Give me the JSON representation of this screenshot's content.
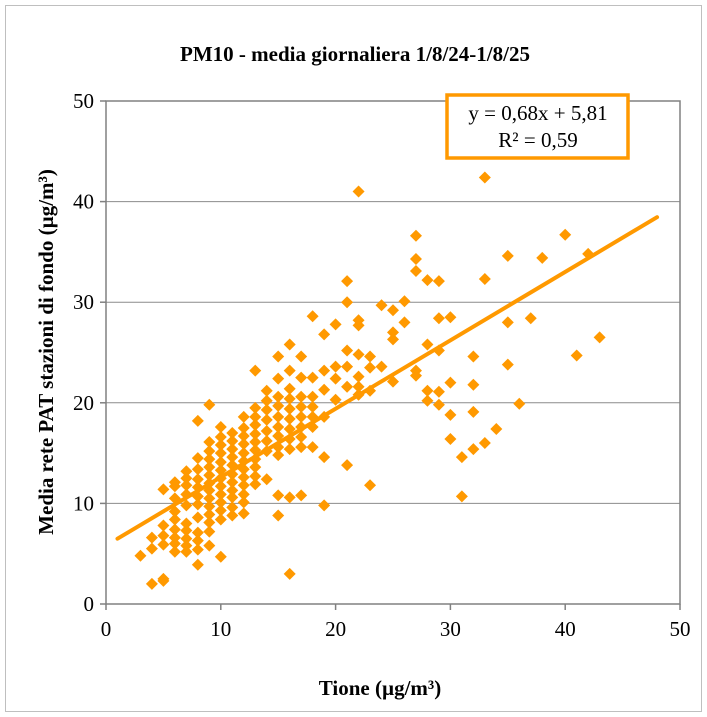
{
  "chart_data": {
    "type": "scatter",
    "title": "PM10 - media giornaliera 1/8/24-1/8/25",
    "xlabel": "Tione (µg/m³)",
    "ylabel": "Media rete PAT stazioni di fondo (µg/m³)",
    "xlim": [
      0,
      50
    ],
    "ylim": [
      0,
      50
    ],
    "x_ticks": [
      "0",
      "10",
      "20",
      "30",
      "40",
      "50"
    ],
    "y_ticks": [
      "0",
      "10",
      "20",
      "30",
      "40",
      "50"
    ],
    "grid": true,
    "marker_color": "#ff9900",
    "marker_shape": "diamond",
    "trendline": {
      "equation": "y = 0,68x + 5,81",
      "r_squared": "R² = 0,59",
      "slope": 0.68,
      "intercept": 5.81,
      "x_range": [
        1,
        48
      ],
      "color": "#ff9900"
    },
    "points": [
      [
        3,
        4.8
      ],
      [
        4,
        2.0
      ],
      [
        4,
        5.5
      ],
      [
        4,
        6.6
      ],
      [
        5,
        2.5
      ],
      [
        5,
        2.3
      ],
      [
        5,
        5.9
      ],
      [
        5,
        6.8
      ],
      [
        5,
        7.8
      ],
      [
        5,
        11.4
      ],
      [
        6,
        5.2
      ],
      [
        6,
        6.0
      ],
      [
        6,
        6.6
      ],
      [
        6,
        7.4
      ],
      [
        6,
        8.4
      ],
      [
        6,
        9.2
      ],
      [
        6,
        10.5
      ],
      [
        6,
        11.7
      ],
      [
        6,
        12.1
      ],
      [
        7,
        5.2
      ],
      [
        7,
        5.8
      ],
      [
        7,
        6.5
      ],
      [
        7,
        7.3
      ],
      [
        7,
        8.0
      ],
      [
        7,
        9.8
      ],
      [
        7,
        10.9
      ],
      [
        7,
        11.8
      ],
      [
        7,
        12.5
      ],
      [
        7,
        13.2
      ],
      [
        8,
        3.9
      ],
      [
        8,
        5.4
      ],
      [
        8,
        6.3
      ],
      [
        8,
        7.1
      ],
      [
        8,
        8.6
      ],
      [
        8,
        9.9
      ],
      [
        8,
        10.7
      ],
      [
        8,
        11.6
      ],
      [
        8,
        12.4
      ],
      [
        8,
        13.4
      ],
      [
        8,
        14.5
      ],
      [
        8,
        18.2
      ],
      [
        9,
        5.8
      ],
      [
        9,
        7.2
      ],
      [
        9,
        8.1
      ],
      [
        9,
        8.9
      ],
      [
        9,
        9.7
      ],
      [
        9,
        10.5
      ],
      [
        9,
        11.3
      ],
      [
        9,
        12.0
      ],
      [
        9,
        12.8
      ],
      [
        9,
        13.6
      ],
      [
        9,
        14.4
      ],
      [
        9,
        15.2
      ],
      [
        9,
        16.1
      ],
      [
        9,
        19.8
      ],
      [
        10,
        4.7
      ],
      [
        10,
        8.4
      ],
      [
        10,
        9.3
      ],
      [
        10,
        10.1
      ],
      [
        10,
        10.9
      ],
      [
        10,
        11.7
      ],
      [
        10,
        12.5
      ],
      [
        10,
        13.3
      ],
      [
        10,
        14.1
      ],
      [
        10,
        15.0
      ],
      [
        10,
        15.8
      ],
      [
        10,
        16.6
      ],
      [
        10,
        17.6
      ],
      [
        11,
        8.8
      ],
      [
        11,
        9.6
      ],
      [
        11,
        10.6
      ],
      [
        11,
        11.3
      ],
      [
        11,
        12.1
      ],
      [
        11,
        12.9
      ],
      [
        11,
        13.8
      ],
      [
        11,
        14.6
      ],
      [
        11,
        15.4
      ],
      [
        11,
        16.2
      ],
      [
        11,
        17.0
      ],
      [
        12,
        9.0
      ],
      [
        12,
        10.1
      ],
      [
        12,
        10.9
      ],
      [
        12,
        11.8
      ],
      [
        12,
        12.6
      ],
      [
        12,
        13.4
      ],
      [
        12,
        14.2
      ],
      [
        12,
        15.0
      ],
      [
        12,
        15.9
      ],
      [
        12,
        16.7
      ],
      [
        12,
        17.5
      ],
      [
        12,
        18.6
      ],
      [
        13,
        11.9
      ],
      [
        13,
        12.7
      ],
      [
        13,
        13.6
      ],
      [
        13,
        14.4
      ],
      [
        13,
        15.3
      ],
      [
        13,
        16.1
      ],
      [
        13,
        16.9
      ],
      [
        13,
        17.8
      ],
      [
        13,
        18.6
      ],
      [
        13,
        19.5
      ],
      [
        13,
        23.2
      ],
      [
        14,
        12.4
      ],
      [
        14,
        15.2
      ],
      [
        14,
        16.2
      ],
      [
        14,
        17.2
      ],
      [
        14,
        18.3
      ],
      [
        14,
        19.3
      ],
      [
        14,
        20.2
      ],
      [
        14,
        21.2
      ],
      [
        15,
        8.8
      ],
      [
        15,
        10.8
      ],
      [
        15,
        14.8
      ],
      [
        15,
        15.6
      ],
      [
        15,
        16.7
      ],
      [
        15,
        17.6
      ],
      [
        15,
        18.6
      ],
      [
        15,
        19.7
      ],
      [
        15,
        20.6
      ],
      [
        15,
        22.4
      ],
      [
        15,
        24.6
      ],
      [
        16,
        3.0
      ],
      [
        16,
        10.6
      ],
      [
        16,
        15.4
      ],
      [
        16,
        16.4
      ],
      [
        16,
        17.4
      ],
      [
        16,
        18.4
      ],
      [
        16,
        19.4
      ],
      [
        16,
        20.4
      ],
      [
        16,
        21.4
      ],
      [
        16,
        23.2
      ],
      [
        16,
        25.8
      ],
      [
        17,
        10.8
      ],
      [
        17,
        15.6
      ],
      [
        17,
        16.6
      ],
      [
        17,
        17.6
      ],
      [
        17,
        18.6
      ],
      [
        17,
        19.6
      ],
      [
        17,
        20.6
      ],
      [
        17,
        22.5
      ],
      [
        17,
        24.6
      ],
      [
        18,
        15.6
      ],
      [
        18,
        17.6
      ],
      [
        18,
        18.6
      ],
      [
        18,
        19.6
      ],
      [
        18,
        20.6
      ],
      [
        18,
        22.5
      ],
      [
        18,
        28.6
      ],
      [
        19,
        9.8
      ],
      [
        19,
        14.6
      ],
      [
        19,
        18.6
      ],
      [
        19,
        21.3
      ],
      [
        19,
        23.2
      ],
      [
        19,
        26.8
      ],
      [
        20,
        20.3
      ],
      [
        20,
        22.4
      ],
      [
        20,
        23.6
      ],
      [
        20,
        27.8
      ],
      [
        21,
        13.8
      ],
      [
        21,
        21.6
      ],
      [
        21,
        23.6
      ],
      [
        21,
        25.2
      ],
      [
        21,
        30.0
      ],
      [
        21,
        32.1
      ],
      [
        22,
        20.8
      ],
      [
        22,
        21.6
      ],
      [
        22,
        22.6
      ],
      [
        22,
        24.8
      ],
      [
        22,
        27.7
      ],
      [
        22,
        28.2
      ],
      [
        22,
        41.0
      ],
      [
        23,
        11.8
      ],
      [
        23,
        21.2
      ],
      [
        23,
        23.5
      ],
      [
        23,
        24.6
      ],
      [
        24,
        23.6
      ],
      [
        24,
        29.7
      ],
      [
        25,
        22.1
      ],
      [
        25,
        26.3
      ],
      [
        25,
        27.0
      ],
      [
        25,
        29.2
      ],
      [
        26,
        28.0
      ],
      [
        26,
        30.1
      ],
      [
        27,
        22.7
      ],
      [
        27,
        23.2
      ],
      [
        27,
        33.1
      ],
      [
        27,
        34.3
      ],
      [
        27,
        36.6
      ],
      [
        28,
        20.2
      ],
      [
        28,
        21.2
      ],
      [
        28,
        25.8
      ],
      [
        28,
        32.2
      ],
      [
        29,
        19.8
      ],
      [
        29,
        21.1
      ],
      [
        29,
        25.2
      ],
      [
        29,
        28.4
      ],
      [
        29,
        32.1
      ],
      [
        30,
        16.4
      ],
      [
        30,
        18.8
      ],
      [
        30,
        22.0
      ],
      [
        30,
        28.5
      ],
      [
        31,
        10.7
      ],
      [
        31,
        14.6
      ],
      [
        32,
        15.4
      ],
      [
        32,
        19.1
      ],
      [
        32,
        21.8
      ],
      [
        32,
        24.6
      ],
      [
        33,
        16.0
      ],
      [
        33,
        32.3
      ],
      [
        33,
        42.4
      ],
      [
        34,
        17.4
      ],
      [
        35,
        23.8
      ],
      [
        35,
        28.0
      ],
      [
        35,
        34.6
      ],
      [
        36,
        19.9
      ],
      [
        37,
        28.4
      ],
      [
        38,
        34.4
      ],
      [
        40,
        36.7
      ],
      [
        41,
        24.7
      ],
      [
        42,
        34.8
      ],
      [
        43,
        26.5
      ]
    ]
  }
}
